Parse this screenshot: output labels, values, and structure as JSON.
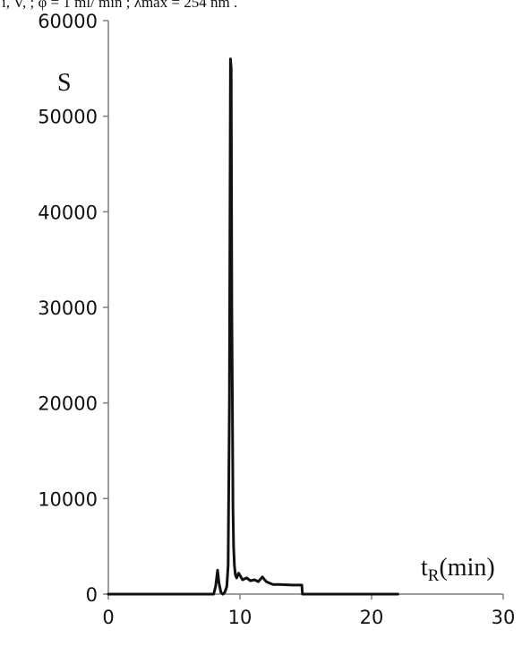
{
  "header_text": "i, V, ; φ = 1 ml/ min ; λmax = 254 nm .",
  "chart_data": {
    "type": "line",
    "title": "",
    "xlabel_main": "t",
    "xlabel_sub": "R",
    "xlabel_unit": "(min)",
    "ylabel": "S",
    "xlim": [
      0,
      30
    ],
    "ylim": [
      0,
      60000
    ],
    "xticks": [
      0,
      10,
      20,
      30
    ],
    "yticks": [
      0,
      10000,
      20000,
      30000,
      40000,
      50000,
      60000
    ],
    "grid": false,
    "series": [
      {
        "color": "#111111",
        "x": [
          0,
          8.0,
          8.15,
          8.3,
          8.4,
          8.55,
          8.7,
          8.85,
          9.0,
          9.1,
          9.2,
          9.28,
          9.33,
          9.38,
          9.42,
          9.47,
          9.52,
          9.58,
          9.65,
          9.75,
          9.9,
          10.2,
          10.5,
          10.8,
          11.1,
          11.4,
          11.7,
          12.0,
          12.5,
          13.0,
          14.0,
          14.7,
          14.75,
          16.0,
          18.0,
          20.0,
          22.0
        ],
        "y": [
          0,
          0,
          800,
          2500,
          1200,
          200,
          0,
          200,
          800,
          3000,
          20000,
          56000,
          55000,
          30000,
          21000,
          9000,
          5000,
          3000,
          2000,
          1700,
          2200,
          1500,
          1700,
          1400,
          1500,
          1300,
          1800,
          1300,
          1000,
          1000,
          950,
          950,
          0,
          0,
          0,
          0,
          0
        ]
      }
    ]
  }
}
